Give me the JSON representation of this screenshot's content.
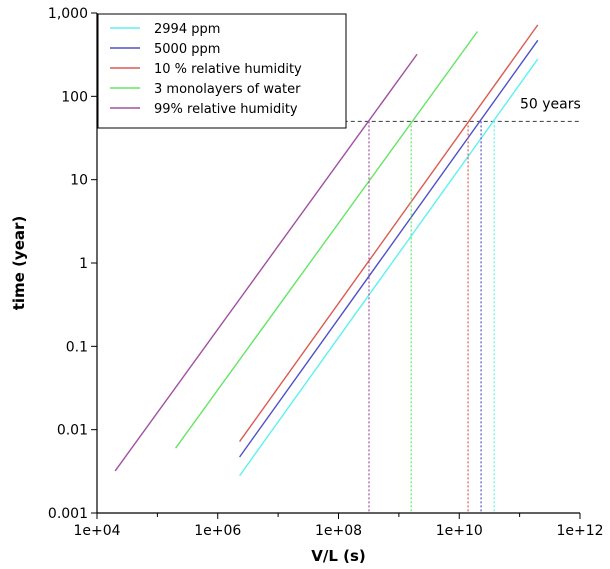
{
  "chart_data": {
    "type": "line",
    "title": "",
    "xlabel": "V/L (s)",
    "ylabel": "time (year)",
    "xscale": "log",
    "yscale": "log",
    "xlim": [
      10000,
      1000000000000
    ],
    "ylim": [
      0.001,
      1000
    ],
    "x_ticks": [
      {
        "value": 10000,
        "label": "1e+04"
      },
      {
        "value": 1000000,
        "label": "1e+06"
      },
      {
        "value": 100000000,
        "label": "1e+08"
      },
      {
        "value": 10000000000,
        "label": "1e+10"
      },
      {
        "value": 1000000000000,
        "label": "1e+12"
      }
    ],
    "y_ticks": [
      {
        "value": 0.001,
        "label": "0.001"
      },
      {
        "value": 0.01,
        "label": "0.01"
      },
      {
        "value": 0.1,
        "label": "0.1"
      },
      {
        "value": 1,
        "label": "1"
      },
      {
        "value": 10,
        "label": "10"
      },
      {
        "value": 100,
        "label": "100"
      },
      {
        "value": 1000,
        "label": "1,000"
      }
    ],
    "legend_position": "top-left",
    "grid": false,
    "series": [
      {
        "name": "2994 ppm",
        "color": "#5ff0f0",
        "x": [
          2300000,
          200000000000
        ],
        "y": [
          0.0028,
          280
        ],
        "crossing_x": 38000000000
      },
      {
        "name": "5000 ppm",
        "color": "#5050c8",
        "x": [
          2300000,
          200000000000
        ],
        "y": [
          0.0047,
          470
        ],
        "crossing_x": 23000000000
      },
      {
        "name": "10 % relative humidity",
        "color": "#dc5a50",
        "x": [
          2300000,
          200000000000
        ],
        "y": [
          0.0072,
          720
        ],
        "crossing_x": 14000000000
      },
      {
        "name": "3 monolayers of water",
        "color": "#64e664",
        "x": [
          200000,
          20000000000
        ],
        "y": [
          0.006,
          600
        ],
        "crossing_x": 1600000000
      },
      {
        "name": "99% relative humidity",
        "color": "#a050a0",
        "x": [
          20000,
          2000000000
        ],
        "y": [
          0.0032,
          320
        ],
        "crossing_x": 320000000
      }
    ],
    "annotations": [
      {
        "text": "50 years",
        "y": 50,
        "style": "dashed",
        "color": "#505050",
        "x_start": 1000000
      }
    ]
  }
}
